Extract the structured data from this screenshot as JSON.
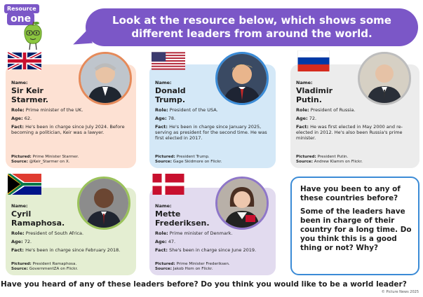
{
  "logo": {
    "line1": "Resource",
    "line2": "one"
  },
  "header": {
    "title": "Look at the resource below, which shows some different leaders from around the world."
  },
  "labels": {
    "name": "Name:",
    "role": "Role:",
    "age": "Age:",
    "fact": "Fact:",
    "pictured": "Pictured:",
    "source": "Source:"
  },
  "leaders": [
    {
      "id": "uk",
      "flag": "united-kingdom-flag",
      "name": "Sir Keir Starmer.",
      "role": "Prime minister of the UK.",
      "age": "62.",
      "fact": "He's been in charge since July 2024. Before becoming a politician, Keir was a lawyer.",
      "pictured": "Prime Minister Starmer.",
      "source": "@Keir_Starmer on X."
    },
    {
      "id": "us",
      "flag": "united-states-flag",
      "name": "Donald Trump.",
      "role": "President of the USA.",
      "age": "78.",
      "fact": "He's been in charge since January 2025, serving as president for the second time. He was first elected in 2017.",
      "pictured": "President Trump.",
      "source": "Gage Skidmore on Flickr."
    },
    {
      "id": "ru",
      "flag": "russia-flag",
      "name": "Vladimir Putin.",
      "role": "President of Russia.",
      "age": "72.",
      "fact": "He was first elected in May 2000 and re-elected in 2012. He's also been Russia's prime minister.",
      "pictured": "President Putin.",
      "source": "Andrew Klamm on Flickr."
    },
    {
      "id": "za",
      "flag": "south-africa-flag",
      "name": "Cyril Ramaphosa.",
      "role": "President of South Africa.",
      "age": "72.",
      "fact": "He's been in charge since February 2018.",
      "pictured": "President Ramaphosa.",
      "source": "GovernmentZA on Flickr."
    },
    {
      "id": "dk",
      "flag": "denmark-flag",
      "name": "Mette Frederiksen.",
      "role": "Prime minister of Denmark.",
      "age": "47.",
      "fact": "She's been in charge since June 2019.",
      "pictured": "Prime Minister Frederiksen.",
      "source": "Jakob Hom on Flickr."
    }
  ],
  "questions": {
    "q1": "Have you been to any of these countries before?",
    "q2": "Some of the leaders have been in charge of their country for a long time. Do you think this is a good thing or not? Why?"
  },
  "footer": {
    "question": "Have you heard of any of these leaders before? Do you think you would like to be a world leader?",
    "copyright": "© Picture News 2025"
  },
  "colors": {
    "purple": "#7b57c7",
    "blue": "#3b8bd6",
    "uk": "#fde1d3",
    "us": "#d4e8f7",
    "ru": "#ececec",
    "za": "#e4eed2",
    "dk": "#e2dbef"
  }
}
